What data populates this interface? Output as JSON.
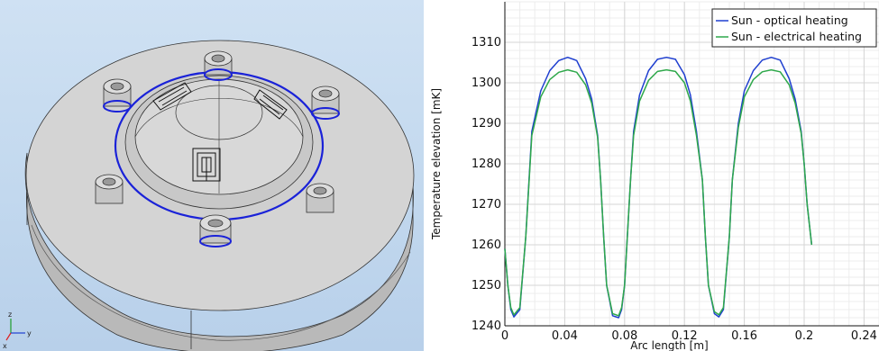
{
  "viewport": {
    "background": "#c4d9ee",
    "triad": {
      "z_label": "z",
      "y_label": "y",
      "x_label": "x"
    }
  },
  "chart_data": {
    "type": "line",
    "title": "",
    "xlabel": "Arc length [m]",
    "ylabel": "Temperature elevation [mK]",
    "xlim": [
      0,
      0.25
    ],
    "ylim": [
      1240,
      1320
    ],
    "x_ticks": [
      "0",
      "0.04",
      "0.08",
      "0.12",
      "0.16",
      "0.2",
      "0.24"
    ],
    "y_ticks": [
      "1240",
      "1250",
      "1260",
      "1270",
      "1280",
      "1290",
      "1300",
      "1310"
    ],
    "grid": true,
    "legend_position": "top-right",
    "series": [
      {
        "name": "Sun - optical heating",
        "color": "#1f3fd0",
        "x": [
          0,
          0.002,
          0.004,
          0.006,
          0.01,
          0.014,
          0.018,
          0.024,
          0.03,
          0.036,
          0.042,
          0.048,
          0.054,
          0.058,
          0.062,
          0.064,
          0.066,
          0.068,
          0.072,
          0.076,
          0.078,
          0.08,
          0.084,
          0.086,
          0.09,
          0.096,
          0.102,
          0.108,
          0.114,
          0.12,
          0.124,
          0.128,
          0.132,
          0.134,
          0.136,
          0.14,
          0.143,
          0.146,
          0.15,
          0.152,
          0.156,
          0.16,
          0.166,
          0.172,
          0.178,
          0.184,
          0.19,
          0.194,
          0.198,
          0.2,
          0.202,
          0.205
        ],
        "y": [
          1259,
          1250,
          1244,
          1242.2,
          1244,
          1262,
          1288,
          1298,
          1303,
          1305.5,
          1306.3,
          1305.5,
          1301,
          1296,
          1287,
          1276,
          1262,
          1250,
          1242.5,
          1242,
          1244,
          1250,
          1276,
          1288,
          1297,
          1303,
          1305.8,
          1306.3,
          1305.8,
          1302,
          1297,
          1288,
          1276,
          1262,
          1250,
          1243,
          1242.2,
          1244,
          1262,
          1276,
          1290,
          1298,
          1303,
          1305.6,
          1306.3,
          1305.6,
          1301,
          1296,
          1288,
          1280,
          1270,
          1260
        ]
      },
      {
        "name": "Sun - electrical heating",
        "color": "#2ea84a",
        "x": [
          0,
          0.002,
          0.004,
          0.006,
          0.01,
          0.014,
          0.018,
          0.024,
          0.03,
          0.036,
          0.042,
          0.048,
          0.054,
          0.058,
          0.062,
          0.064,
          0.066,
          0.068,
          0.072,
          0.076,
          0.078,
          0.08,
          0.084,
          0.086,
          0.09,
          0.096,
          0.102,
          0.108,
          0.114,
          0.12,
          0.124,
          0.128,
          0.132,
          0.134,
          0.136,
          0.14,
          0.143,
          0.146,
          0.15,
          0.152,
          0.156,
          0.16,
          0.166,
          0.172,
          0.178,
          0.184,
          0.19,
          0.194,
          0.198,
          0.2,
          0.202,
          0.205
        ],
        "y": [
          1259,
          1250,
          1244.5,
          1242.7,
          1244.5,
          1262,
          1287,
          1296.5,
          1300.8,
          1302.6,
          1303.2,
          1302.6,
          1299.5,
          1295,
          1286.5,
          1276,
          1262,
          1250,
          1243,
          1242.5,
          1244.5,
          1250,
          1276,
          1287,
          1295.5,
          1300.6,
          1302.8,
          1303.2,
          1302.8,
          1300,
          1295.5,
          1287,
          1276,
          1262,
          1250,
          1243.5,
          1242.7,
          1244.5,
          1262,
          1276,
          1289,
          1296.5,
          1300.8,
          1302.7,
          1303.2,
          1302.7,
          1299.5,
          1295,
          1287.5,
          1280,
          1270,
          1260
        ]
      }
    ]
  }
}
